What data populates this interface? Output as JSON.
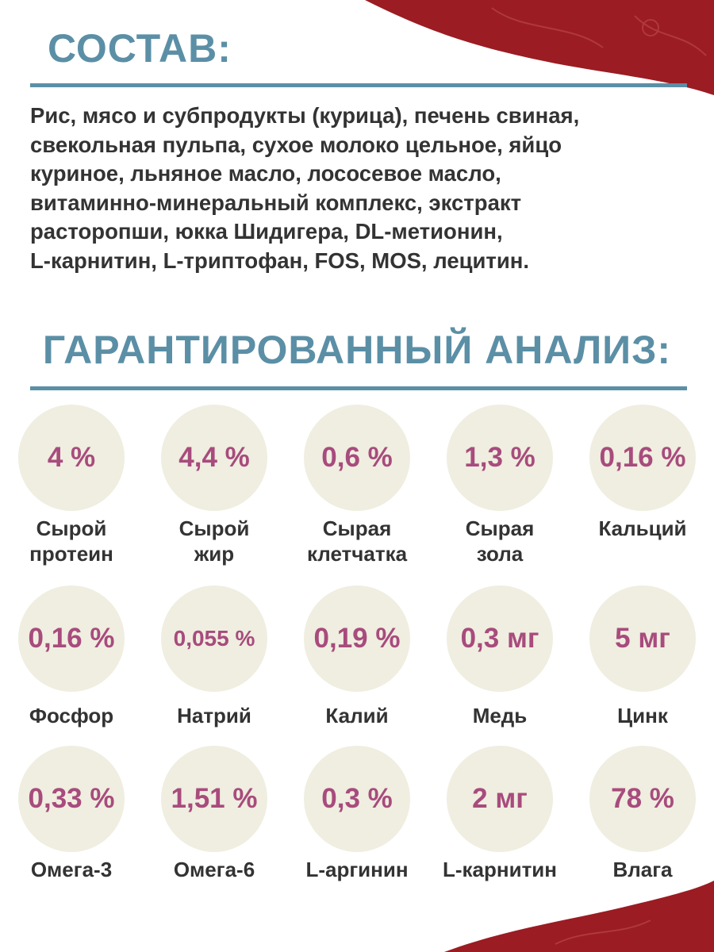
{
  "composition": {
    "title": "СОСТАВ:",
    "lines": [
      "Рис, мясо и субпродукты (курица), печень свиная,",
      "свекольная пульпа, сухое молоко цельное, яйцо",
      "куриное, льняное масло, лососевое масло,",
      "витаминно-минеральный комплекс, экстракт",
      "расторопши, юкка Шидигера, DL-метионин,",
      "L-карнитин, L-триптофан, FOS, MOS, лецитин."
    ]
  },
  "analysis": {
    "title": "ГАРАНТИРОВАННЫЙ АНАЛИЗ:",
    "items": [
      {
        "value": "4 %",
        "label": [
          "Сырой",
          "протеин"
        ]
      },
      {
        "value": "4,4 %",
        "label": [
          "Сырой",
          "жир"
        ]
      },
      {
        "value": "0,6 %",
        "label": [
          "Сырая",
          "клетчатка"
        ]
      },
      {
        "value": "1,3 %",
        "label": [
          "Сырая",
          "зола"
        ]
      },
      {
        "value": "0,16 %",
        "label": [
          "Кальций"
        ]
      },
      {
        "value": "0,16 %",
        "label": [
          "Фосфор"
        ]
      },
      {
        "value": "0,055 %",
        "label": [
          "Натрий"
        ]
      },
      {
        "value": "0,19 %",
        "label": [
          "Калий"
        ]
      },
      {
        "value": "0,3 мг",
        "label": [
          "Медь"
        ]
      },
      {
        "value": "5 мг",
        "label": [
          "Цинк"
        ]
      },
      {
        "value": "0,33 %",
        "label": [
          "Омега-3"
        ]
      },
      {
        "value": "1,51 %",
        "label": [
          "Омега-6"
        ]
      },
      {
        "value": "0,3 %",
        "label": [
          "L-аргинин"
        ]
      },
      {
        "value": "2 мг",
        "label": [
          "L-карнитин"
        ]
      },
      {
        "value": "78 %",
        "label": [
          "Влага"
        ]
      }
    ]
  }
}
